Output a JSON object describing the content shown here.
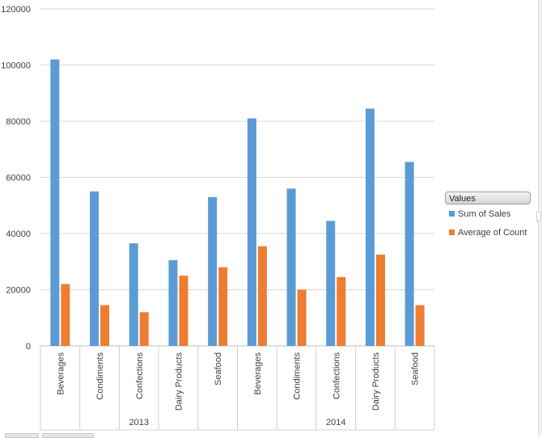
{
  "chart_data": {
    "type": "bar",
    "y_ticks": [
      "0",
      "20000",
      "40000",
      "60000",
      "80000",
      "100000",
      "120000"
    ],
    "ylim": [
      0,
      120000
    ],
    "grid": true,
    "legend_placement": "right",
    "legend_title": "Values",
    "groups": [
      {
        "label": "2013",
        "categories": [
          "Beverages",
          "Condiments",
          "Confections",
          "Dairy Products",
          "Seafood"
        ]
      },
      {
        "label": "2014",
        "categories": [
          "Beverages",
          "Condiments",
          "Confections",
          "Dairy Products",
          "Seafood"
        ]
      }
    ],
    "series": [
      {
        "name": "Sum of Sales",
        "color": "#5B9BD5",
        "values": [
          102000,
          55000,
          36500,
          30500,
          53000,
          81000,
          56000,
          44500,
          84500,
          65500
        ]
      },
      {
        "name": "Average of Count",
        "color": "#ED7D31",
        "values": [
          22000,
          14500,
          12000,
          25000,
          28000,
          35500,
          20000,
          24500,
          32500,
          14500
        ]
      }
    ]
  }
}
